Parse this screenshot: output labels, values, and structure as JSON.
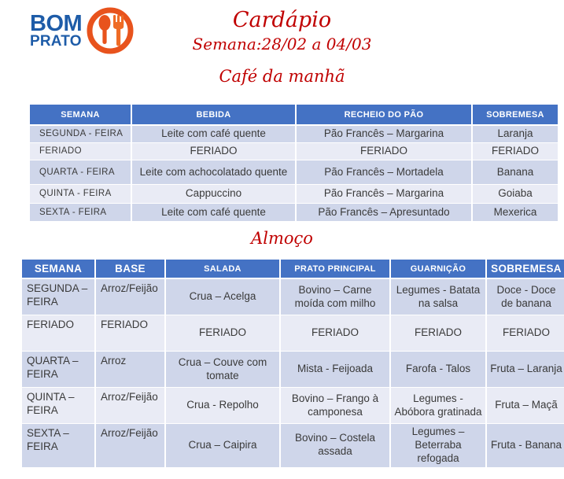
{
  "logo": {
    "line1": "BOM",
    "line2": "PRATO",
    "icon": "cutlery-icon"
  },
  "header": {
    "title": "Cardápio",
    "week": "Semana:28/02 a 04/03"
  },
  "breakfast": {
    "title": "Café da manhã",
    "columns": [
      "SEMANA",
      "BEBIDA",
      "RECHEIO DO PÃO",
      "SOBREMESA"
    ],
    "rows": [
      [
        "SEGUNDA - FEIRA",
        "Leite com café quente",
        "Pão Francês – Margarina",
        "Laranja"
      ],
      [
        "FERIADO",
        "FERIADO",
        "FERIADO",
        "FERIADO"
      ],
      [
        "QUARTA - FEIRA",
        "Leite com achocolatado quente",
        "Pão Francês – Mortadela",
        "Banana"
      ],
      [
        "QUINTA - FEIRA",
        "Cappuccino",
        "Pão Francês – Margarina",
        "Goiaba"
      ],
      [
        "SEXTA - FEIRA",
        "Leite com café quente",
        "Pão Francês – Apresuntado",
        "Mexerica"
      ]
    ]
  },
  "lunch": {
    "title": "Almoço",
    "columns": [
      "SEMANA",
      "BASE",
      "SALADA",
      "PRATO PRINCIPAL",
      "GUARNIÇÃO",
      "SOBREMESA"
    ],
    "rows": [
      [
        "SEGUNDA – FEIRA",
        "Arroz/Feijão",
        "Crua – Acelga",
        "Bovino – Carne moída com milho",
        "Legumes - Batata na salsa",
        "Doce - Doce de banana"
      ],
      [
        "FERIADO",
        "FERIADO",
        "FERIADO",
        "FERIADO",
        "FERIADO",
        "FERIADO"
      ],
      [
        "QUARTA – FEIRA",
        "Arroz",
        "Crua – Couve com tomate",
        "Mista - Feijoada",
        "Farofa - Talos",
        "Fruta – Laranja"
      ],
      [
        "QUINTA – FEIRA",
        "Arroz/Feijão",
        "Crua - Repolho",
        "Bovino – Frango à camponesa",
        "Legumes - Abóbora gratinada",
        "Fruta – Maçã"
      ],
      [
        "SEXTA – FEIRA",
        "Arroz/Feijão",
        "Crua – Caipira",
        "Bovino – Costela assada",
        "Legumes – Beterraba refogada",
        "Fruta - Banana"
      ]
    ]
  },
  "colors": {
    "header_blue": "#4472C4",
    "row_dark": "#CFD6EA",
    "row_light": "#E9EBF5",
    "accent_red": "#C00000",
    "logo_blue": "#1E5CA8",
    "logo_orange": "#E8531D"
  }
}
